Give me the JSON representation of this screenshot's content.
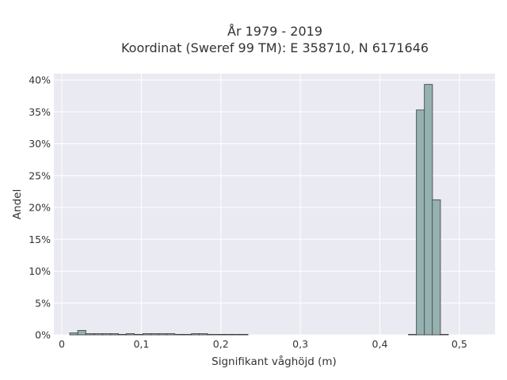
{
  "chart_data": {
    "type": "bar",
    "title_line1": "År 1979 - 2019",
    "title_line2": "Koordinat (Sweref 99 TM): E 358710, N 6171646",
    "xlabel": "Signifikant våghöjd (m)",
    "ylabel": "Andel",
    "xlim": [
      -0.01,
      0.545
    ],
    "ylim": [
      0,
      0.41
    ],
    "x_ticks": [
      {
        "value": 0,
        "label": "0"
      },
      {
        "value": 0.1,
        "label": "0,1"
      },
      {
        "value": 0.2,
        "label": "0,2"
      },
      {
        "value": 0.3,
        "label": "0,3"
      },
      {
        "value": 0.4,
        "label": "0,4"
      },
      {
        "value": 0.5,
        "label": "0,5"
      }
    ],
    "y_ticks": [
      {
        "value": 0,
        "label": "0%"
      },
      {
        "value": 0.05,
        "label": "5%"
      },
      {
        "value": 0.1,
        "label": "10%"
      },
      {
        "value": 0.15,
        "label": "15%"
      },
      {
        "value": 0.2,
        "label": "20%"
      },
      {
        "value": 0.25,
        "label": "25%"
      },
      {
        "value": 0.3,
        "label": "30%"
      },
      {
        "value": 0.35,
        "label": "35%"
      },
      {
        "value": 0.4,
        "label": "40%"
      }
    ],
    "bin_width": 0.0102,
    "bins": [
      {
        "x0": 0.01,
        "value": 0.003
      },
      {
        "x0": 0.02,
        "value": 0.007
      },
      {
        "x0": 0.03,
        "value": 0.002
      },
      {
        "x0": 0.041,
        "value": 0.002
      },
      {
        "x0": 0.051,
        "value": 0.002
      },
      {
        "x0": 0.061,
        "value": 0.002
      },
      {
        "x0": 0.071,
        "value": 0.0008
      },
      {
        "x0": 0.081,
        "value": 0.002
      },
      {
        "x0": 0.092,
        "value": 0.0008
      },
      {
        "x0": 0.102,
        "value": 0.002
      },
      {
        "x0": 0.112,
        "value": 0.002
      },
      {
        "x0": 0.122,
        "value": 0.002
      },
      {
        "x0": 0.132,
        "value": 0.002
      },
      {
        "x0": 0.143,
        "value": 0.0008
      },
      {
        "x0": 0.153,
        "value": 0.0008
      },
      {
        "x0": 0.163,
        "value": 0.002
      },
      {
        "x0": 0.173,
        "value": 0.002
      },
      {
        "x0": 0.183,
        "value": 0.0008
      },
      {
        "x0": 0.194,
        "value": 0.0008
      },
      {
        "x0": 0.204,
        "value": 0.0008
      },
      {
        "x0": 0.214,
        "value": 0.0008
      },
      {
        "x0": 0.224,
        "value": 0.0008
      },
      {
        "x0": 0.436,
        "value": 0.0008
      },
      {
        "x0": 0.446,
        "value": 0.353
      },
      {
        "x0": 0.456,
        "value": 0.393
      },
      {
        "x0": 0.466,
        "value": 0.212
      },
      {
        "x0": 0.476,
        "value": 0.0008
      }
    ],
    "colors": {
      "bar_fill": "#95b1b0",
      "bar_stroke": "#3a3a3a",
      "plot_bg": "#eaeaf2",
      "grid": "#ffffff"
    }
  }
}
